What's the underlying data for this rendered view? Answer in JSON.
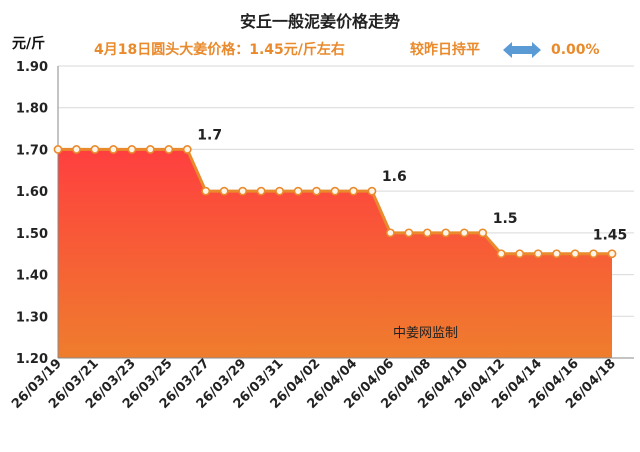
{
  "title": "安丘一般泥姜价格走势",
  "subtitle": {
    "price_text": "4月18日圆头大姜价格：1.45元/斤左右",
    "compare_text": "较昨日持平",
    "change_value": "0.00%"
  },
  "unit_label": "元/斤",
  "watermark": "中姜网监制",
  "colors": {
    "accent": "#e98a2c",
    "area_top": "#ff3f3f",
    "area_bottom": "#ef7d2d",
    "arrow": "#5b9bd5"
  },
  "icons": {
    "change_indicator": "double-arrow-icon"
  },
  "chart_data": {
    "type": "area",
    "title": "安丘一般泥姜价格走势",
    "ylabel": "元/斤",
    "ylim": [
      1.2,
      1.9
    ],
    "yticks": [
      "1.20",
      "1.30",
      "1.40",
      "1.50",
      "1.60",
      "1.70",
      "1.80",
      "1.90"
    ],
    "grid": "horizontal",
    "x": [
      "26/03/19",
      "26/03/20",
      "26/03/21",
      "26/03/22",
      "26/03/23",
      "26/03/24",
      "26/03/25",
      "26/03/26",
      "26/03/27",
      "26/03/28",
      "26/03/29",
      "26/03/30",
      "26/03/31",
      "26/04/01",
      "26/04/02",
      "26/04/03",
      "26/04/04",
      "26/04/05",
      "26/04/06",
      "26/04/07",
      "26/04/08",
      "26/04/09",
      "26/04/10",
      "26/04/11",
      "26/04/12",
      "26/04/13",
      "26/04/14",
      "26/04/15",
      "26/04/16",
      "26/04/17",
      "26/04/18"
    ],
    "x_tick_labels": [
      "26/03/19",
      "26/03/21",
      "26/03/23",
      "26/03/25",
      "26/03/27",
      "26/03/29",
      "26/03/31",
      "26/04/02",
      "26/04/04",
      "26/04/06",
      "26/04/08",
      "26/04/10",
      "26/04/12",
      "26/04/14",
      "26/04/16",
      "26/04/18"
    ],
    "series": [
      {
        "values": [
          1.7,
          1.7,
          1.7,
          1.7,
          1.7,
          1.7,
          1.7,
          1.7,
          1.6,
          1.6,
          1.6,
          1.6,
          1.6,
          1.6,
          1.6,
          1.6,
          1.6,
          1.6,
          1.5,
          1.5,
          1.5,
          1.5,
          1.5,
          1.5,
          1.45,
          1.45,
          1.45,
          1.45,
          1.45,
          1.45,
          1.45
        ]
      }
    ],
    "data_labels": [
      {
        "x": "26/03/26",
        "text": "1.7"
      },
      {
        "x": "26/04/05",
        "text": "1.6"
      },
      {
        "x": "26/04/11",
        "text": "1.5"
      },
      {
        "x": "26/04/18",
        "text": "1.45"
      }
    ]
  }
}
